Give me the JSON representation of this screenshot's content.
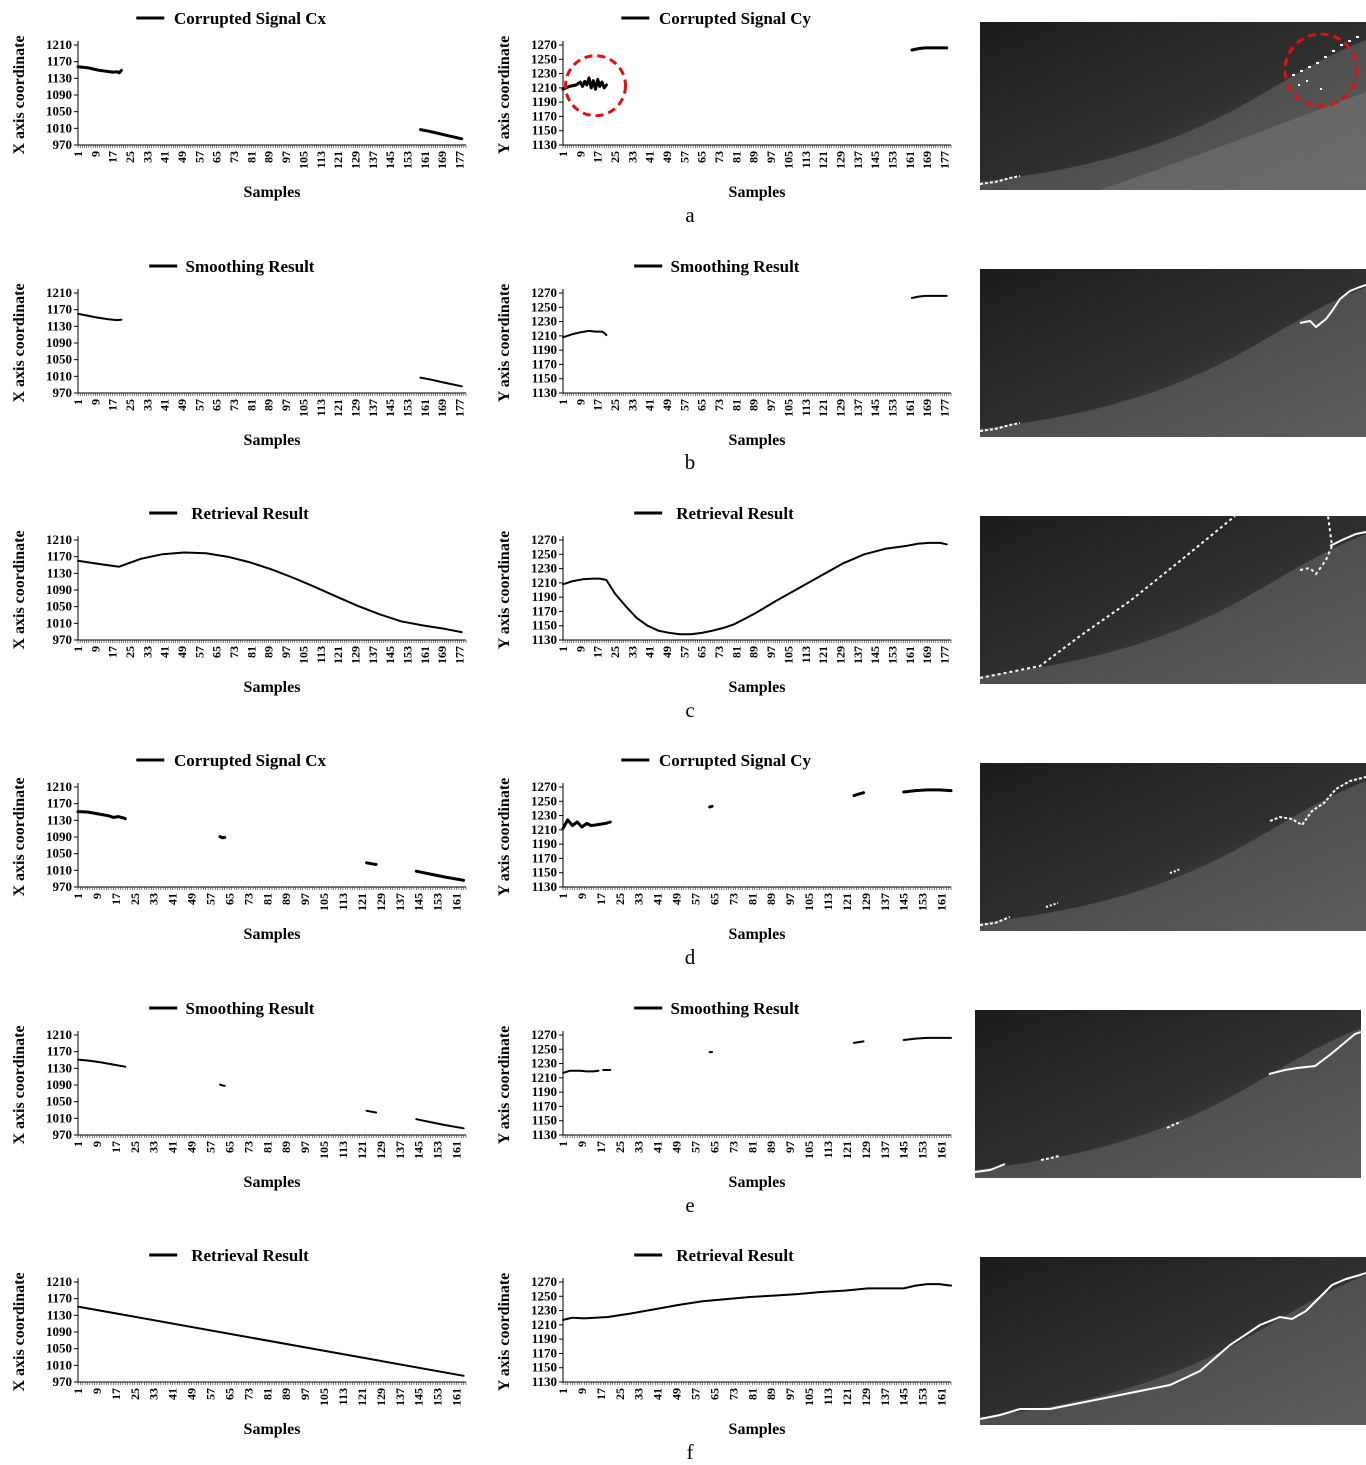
{
  "colors": {
    "line": "#000000",
    "highlight": "#e01010",
    "trace": "#ffffff"
  },
  "row_labels": [
    "a",
    "b",
    "c",
    "d",
    "e",
    "f"
  ],
  "x_axis_label": "Samples",
  "x_label_cx": "X axis coordinate",
  "y_label_cy": "Y axis coordinate",
  "cx_ticks_y": [
    970,
    1010,
    1050,
    1090,
    1130,
    1170,
    1210
  ],
  "cy_ticks_y": [
    1130,
    1150,
    1170,
    1190,
    1210,
    1230,
    1250,
    1270
  ],
  "x_ticks_long": [
    "1",
    "9",
    "17",
    "25",
    "33",
    "41",
    "49",
    "57",
    "65",
    "73",
    "81",
    "89",
    "97",
    "105",
    "113",
    "121",
    "129",
    "137",
    "145",
    "153",
    "161",
    "169",
    "177"
  ],
  "x_ticks_short": [
    "1",
    "9",
    "17",
    "25",
    "33",
    "41",
    "49",
    "57",
    "65",
    "73",
    "81",
    "89",
    "97",
    "105",
    "113",
    "121",
    "129",
    "137",
    "145",
    "153",
    "161"
  ],
  "icons": [
    "depth-map-image",
    "red-dashed-circle-highlight"
  ],
  "chart_data": [
    {
      "id": "a-cx",
      "type": "line",
      "title": "Corrupted Signal Cx",
      "xlabel": "Samples",
      "ylabel": "X axis coordinate",
      "xlim": [
        1,
        180
      ],
      "ylim": [
        970,
        1210
      ],
      "legend": "top-center",
      "series": [
        {
          "name": "Corrupted Signal Cx",
          "segments": [
            {
              "x": [
                1,
                6,
                10,
                14,
                17,
                19,
                20,
                21
              ],
              "y": [
                1158,
                1155,
                1150,
                1147,
                1145,
                1146,
                1143,
                1149
              ]
            },
            {
              "x": [
                159,
                163,
                168,
                173,
                178
              ],
              "y": [
                1007,
                1003,
                997,
                991,
                985
              ]
            }
          ]
        }
      ]
    },
    {
      "id": "a-cy",
      "type": "line",
      "title": "Corrupted Signal Cy",
      "xlabel": "Samples",
      "ylabel": "Y axis coordinate",
      "xlim": [
        1,
        180
      ],
      "ylim": [
        1130,
        1270
      ],
      "legend": "top-center",
      "highlight_circle": {
        "x_center": 16,
        "y_center": 1213
      },
      "series": [
        {
          "name": "Corrupted Signal Cy",
          "segments": [
            {
              "x": [
                1,
                4,
                7,
                9,
                10,
                11,
                12,
                13,
                14,
                15,
                16,
                17,
                18,
                19,
                20,
                21
              ],
              "y": [
                1208,
                1212,
                1214,
                1218,
                1212,
                1219,
                1214,
                1224,
                1210,
                1220,
                1208,
                1222,
                1212,
                1218,
                1210,
                1214
              ]
            },
            {
              "x": [
                162,
                165,
                168,
                172,
                178
              ],
              "y": [
                1263,
                1265,
                1266,
                1266,
                1266
              ]
            }
          ]
        }
      ]
    },
    {
      "id": "b-cx",
      "type": "line",
      "title": "Smoothing Result",
      "xlabel": "Samples",
      "ylabel": "X axis coordinate",
      "xlim": [
        1,
        180
      ],
      "ylim": [
        970,
        1210
      ],
      "legend": "top-center",
      "series": [
        {
          "name": "Smoothing Result",
          "segments": [
            {
              "x": [
                1,
                5,
                10,
                15,
                19,
                21
              ],
              "y": [
                1160,
                1156,
                1151,
                1147,
                1145,
                1146
              ]
            },
            {
              "x": [
                159,
                164,
                170,
                178
              ],
              "y": [
                1007,
                1002,
                995,
                986
              ]
            }
          ]
        }
      ]
    },
    {
      "id": "b-cy",
      "type": "line",
      "title": "Smoothing Result",
      "xlabel": "Samples",
      "ylabel": "Y axis coordinate",
      "xlim": [
        1,
        180
      ],
      "ylim": [
        1130,
        1270
      ],
      "legend": "top-center",
      "series": [
        {
          "name": "Smoothing Result",
          "segments": [
            {
              "x": [
                1,
                5,
                9,
                13,
                16,
                19,
                20,
                21
              ],
              "y": [
                1208,
                1212,
                1215,
                1217,
                1216,
                1216,
                1214,
                1211
              ]
            },
            {
              "x": [
                162,
                165,
                168,
                172,
                178
              ],
              "y": [
                1263,
                1265,
                1266,
                1266,
                1266
              ]
            }
          ]
        }
      ]
    },
    {
      "id": "c-cx",
      "type": "line",
      "title": "Retrieval Result",
      "xlabel": "Samples",
      "ylabel": "X axis coordinate",
      "xlim": [
        1,
        180
      ],
      "ylim": [
        970,
        1210
      ],
      "legend": "top-center",
      "series": [
        {
          "name": "Retrieval Result",
          "segments": [
            {
              "x": [
                1,
                10,
                20,
                30,
                40,
                50,
                60,
                70,
                80,
                90,
                100,
                110,
                120,
                130,
                140,
                150,
                160,
                170,
                178
              ],
              "y": [
                1160,
                1153,
                1146,
                1165,
                1176,
                1180,
                1178,
                1170,
                1157,
                1140,
                1120,
                1098,
                1075,
                1052,
                1032,
                1015,
                1005,
                997,
                989
              ]
            }
          ]
        }
      ]
    },
    {
      "id": "c-cy",
      "type": "line",
      "title": "Retrieval Result",
      "xlabel": "Samples",
      "ylabel": "Y axis coordinate",
      "xlim": [
        1,
        180
      ],
      "ylim": [
        1130,
        1270
      ],
      "legend": "top-center",
      "series": [
        {
          "name": "Retrieval Result",
          "segments": [
            {
              "x": [
                1,
                5,
                10,
                15,
                18,
                21,
                25,
                30,
                35,
                40,
                45,
                50,
                55,
                60,
                65,
                70,
                75,
                80,
                85,
                90,
                95,
                100,
                110,
                120,
                130,
                140,
                150,
                160,
                165,
                170,
                175,
                178
              ],
              "y": [
                1208,
                1212,
                1215,
                1216,
                1216,
                1214,
                1195,
                1177,
                1161,
                1150,
                1143,
                1140,
                1138,
                1138,
                1140,
                1143,
                1147,
                1152,
                1160,
                1168,
                1177,
                1186,
                1203,
                1220,
                1237,
                1250,
                1258,
                1262,
                1265,
                1266,
                1266,
                1264
              ]
            }
          ]
        }
      ]
    },
    {
      "id": "d-cx",
      "type": "line",
      "title": "Corrupted Signal Cx",
      "xlabel": "Samples",
      "ylabel": "X axis coordinate",
      "xlim": [
        1,
        165
      ],
      "ylim": [
        970,
        1210
      ],
      "legend": "top-center",
      "series": [
        {
          "name": "Corrupted Signal Cx",
          "segments": [
            {
              "x": [
                1,
                5,
                10,
                14,
                16,
                18,
                20,
                21
              ],
              "y": [
                1151,
                1150,
                1145,
                1141,
                1137,
                1139,
                1136,
                1134
              ]
            },
            {
              "x": [
                61,
                62,
                63
              ],
              "y": [
                1091,
                1088,
                1089
              ]
            },
            {
              "x": [
                123,
                125,
                127
              ],
              "y": [
                1028,
                1026,
                1024
              ]
            },
            {
              "x": [
                144,
                150,
                156,
                164
              ],
              "y": [
                1008,
                1001,
                994,
                986
              ]
            }
          ]
        }
      ]
    },
    {
      "id": "d-cy",
      "type": "line",
      "title": "Corrupted Signal Cy",
      "xlabel": "Samples",
      "ylabel": "Y axis coordinate",
      "xlim": [
        1,
        165
      ],
      "ylim": [
        1130,
        1270
      ],
      "legend": "top-center",
      "series": [
        {
          "name": "Corrupted Signal Cy",
          "segments": [
            {
              "x": [
                1,
                3,
                5,
                7,
                9,
                11,
                13,
                15,
                17,
                19,
                20,
                21
              ],
              "y": [
                1212,
                1224,
                1216,
                1221,
                1214,
                1219,
                1216,
                1217,
                1218,
                1219,
                1220,
                1221
              ]
            },
            {
              "x": [
                63,
                64
              ],
              "y": [
                1242,
                1243
              ]
            },
            {
              "x": [
                124,
                126,
                128
              ],
              "y": [
                1258,
                1260,
                1262
              ]
            },
            {
              "x": [
                145,
                150,
                155,
                160,
                165
              ],
              "y": [
                1263,
                1265,
                1266,
                1266,
                1265
              ]
            }
          ]
        }
      ]
    },
    {
      "id": "e-cx",
      "type": "line",
      "title": "Smoothing Result",
      "xlabel": "Samples",
      "ylabel": "X axis coordinate",
      "xlim": [
        1,
        165
      ],
      "ylim": [
        970,
        1210
      ],
      "legend": "top-center",
      "series": [
        {
          "name": "Smoothing Result",
          "segments": [
            {
              "x": [
                1,
                6,
                11,
                16,
                21
              ],
              "y": [
                1151,
                1148,
                1144,
                1139,
                1134
              ]
            },
            {
              "x": [
                61,
                62,
                63
              ],
              "y": [
                1091,
                1089,
                1088
              ]
            },
            {
              "x": [
                123,
                125,
                127
              ],
              "y": [
                1028,
                1026,
                1024
              ]
            },
            {
              "x": [
                144,
                150,
                156,
                164
              ],
              "y": [
                1008,
                1001,
                994,
                986
              ]
            }
          ]
        }
      ]
    },
    {
      "id": "e-cy",
      "type": "line",
      "title": "Smoothing Result",
      "xlabel": "Samples",
      "ylabel": "Y axis coordinate",
      "xlim": [
        1,
        165
      ],
      "ylim": [
        1130,
        1270
      ],
      "legend": "top-center",
      "series": [
        {
          "name": "Smoothing Result",
          "segments": [
            {
              "x": [
                1,
                4,
                8,
                11,
                14,
                16
              ],
              "y": [
                1217,
                1220,
                1220,
                1219,
                1219,
                1220
              ]
            },
            {
              "x": [
                18,
                19,
                20,
                21
              ],
              "y": [
                1221,
                1221,
                1221,
                1221
              ]
            },
            {
              "x": [
                63,
                64
              ],
              "y": [
                1246,
                1246
              ]
            },
            {
              "x": [
                124,
                126,
                128
              ],
              "y": [
                1259,
                1260,
                1261
              ]
            },
            {
              "x": [
                145,
                150,
                155,
                160,
                165
              ],
              "y": [
                1263,
                1265,
                1266,
                1266,
                1266
              ]
            }
          ]
        }
      ]
    },
    {
      "id": "f-cx",
      "type": "line",
      "title": "Retrieval Result",
      "xlabel": "Samples",
      "ylabel": "X axis coordinate",
      "xlim": [
        1,
        165
      ],
      "ylim": [
        970,
        1210
      ],
      "legend": "top-center",
      "series": [
        {
          "name": "Retrieval Result",
          "segments": [
            {
              "x": [
                1,
                164
              ],
              "y": [
                1151,
                985
              ]
            }
          ]
        }
      ]
    },
    {
      "id": "f-cy",
      "type": "line",
      "title": "Retrieval Result",
      "xlabel": "Samples",
      "ylabel": "Y axis coordinate",
      "xlim": [
        1,
        165
      ],
      "ylim": [
        1130,
        1270
      ],
      "legend": "top-center",
      "series": [
        {
          "name": "Retrieval Result",
          "segments": [
            {
              "x": [
                1,
                5,
                10,
                20,
                30,
                40,
                50,
                60,
                70,
                80,
                90,
                100,
                110,
                120,
                130,
                140,
                145,
                150,
                155,
                160,
                165
              ],
              "y": [
                1217,
                1220,
                1219,
                1221,
                1226,
                1232,
                1238,
                1243,
                1246,
                1249,
                1251,
                1253,
                1256,
                1258,
                1261,
                1261,
                1261,
                1265,
                1267,
                1267,
                1265
              ]
            }
          ]
        }
      ]
    }
  ]
}
